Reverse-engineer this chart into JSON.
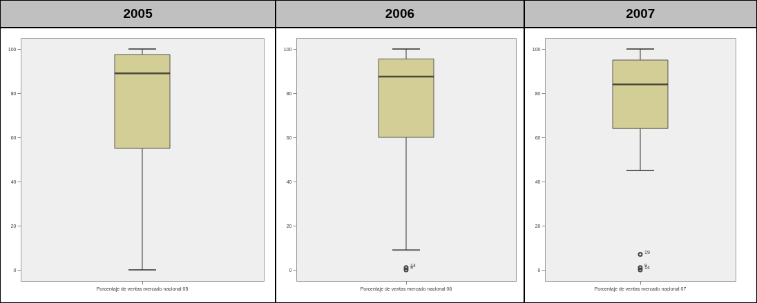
{
  "chart_data": [
    {
      "type": "box",
      "title": "2005",
      "categories": [
        "Porcentaje de ventas mercado nacional 05"
      ],
      "series": [
        {
          "color": "#d3ce96",
          "boxes": [
            {
              "low": 0,
              "q1": 55,
              "median": 89,
              "q3": 97.5,
              "high": 100
            }
          ]
        }
      ],
      "ylim": [
        -5,
        105
      ],
      "yticks": [
        0,
        20,
        40,
        60,
        80,
        100
      ],
      "grid": false
    },
    {
      "type": "box",
      "title": "2006",
      "categories": [
        "Porcentaje de ventas mercado nacional 06"
      ],
      "series": [
        {
          "color": "#d3ce96",
          "boxes": [
            {
              "low": 9,
              "q1": 60,
              "median": 87.5,
              "q3": 95.5,
              "high": 100,
              "outliers": [
                1,
                0
              ]
            }
          ]
        }
      ],
      "ylim": [
        -5,
        105
      ],
      "yticks": [
        0,
        20,
        40,
        60,
        80,
        100
      ],
      "grid": false,
      "marker": "circle",
      "annotations": [
        "14",
        "9"
      ]
    },
    {
      "type": "box",
      "title": "2007",
      "categories": [
        "Porcentaje de ventas mercado nacional 07"
      ],
      "series": [
        {
          "color": "#d3ce96",
          "boxes": [
            {
              "low": 45,
              "q1": 64,
              "median": 84,
              "q3": 95,
              "high": 100,
              "outliers": [
                7,
                1,
                0
              ]
            }
          ]
        }
      ],
      "ylim": [
        -5,
        105
      ],
      "yticks": [
        0,
        20,
        40,
        60,
        80,
        100
      ],
      "grid": false,
      "marker": "circle",
      "annotations": [
        "19",
        "9",
        "14"
      ]
    }
  ]
}
